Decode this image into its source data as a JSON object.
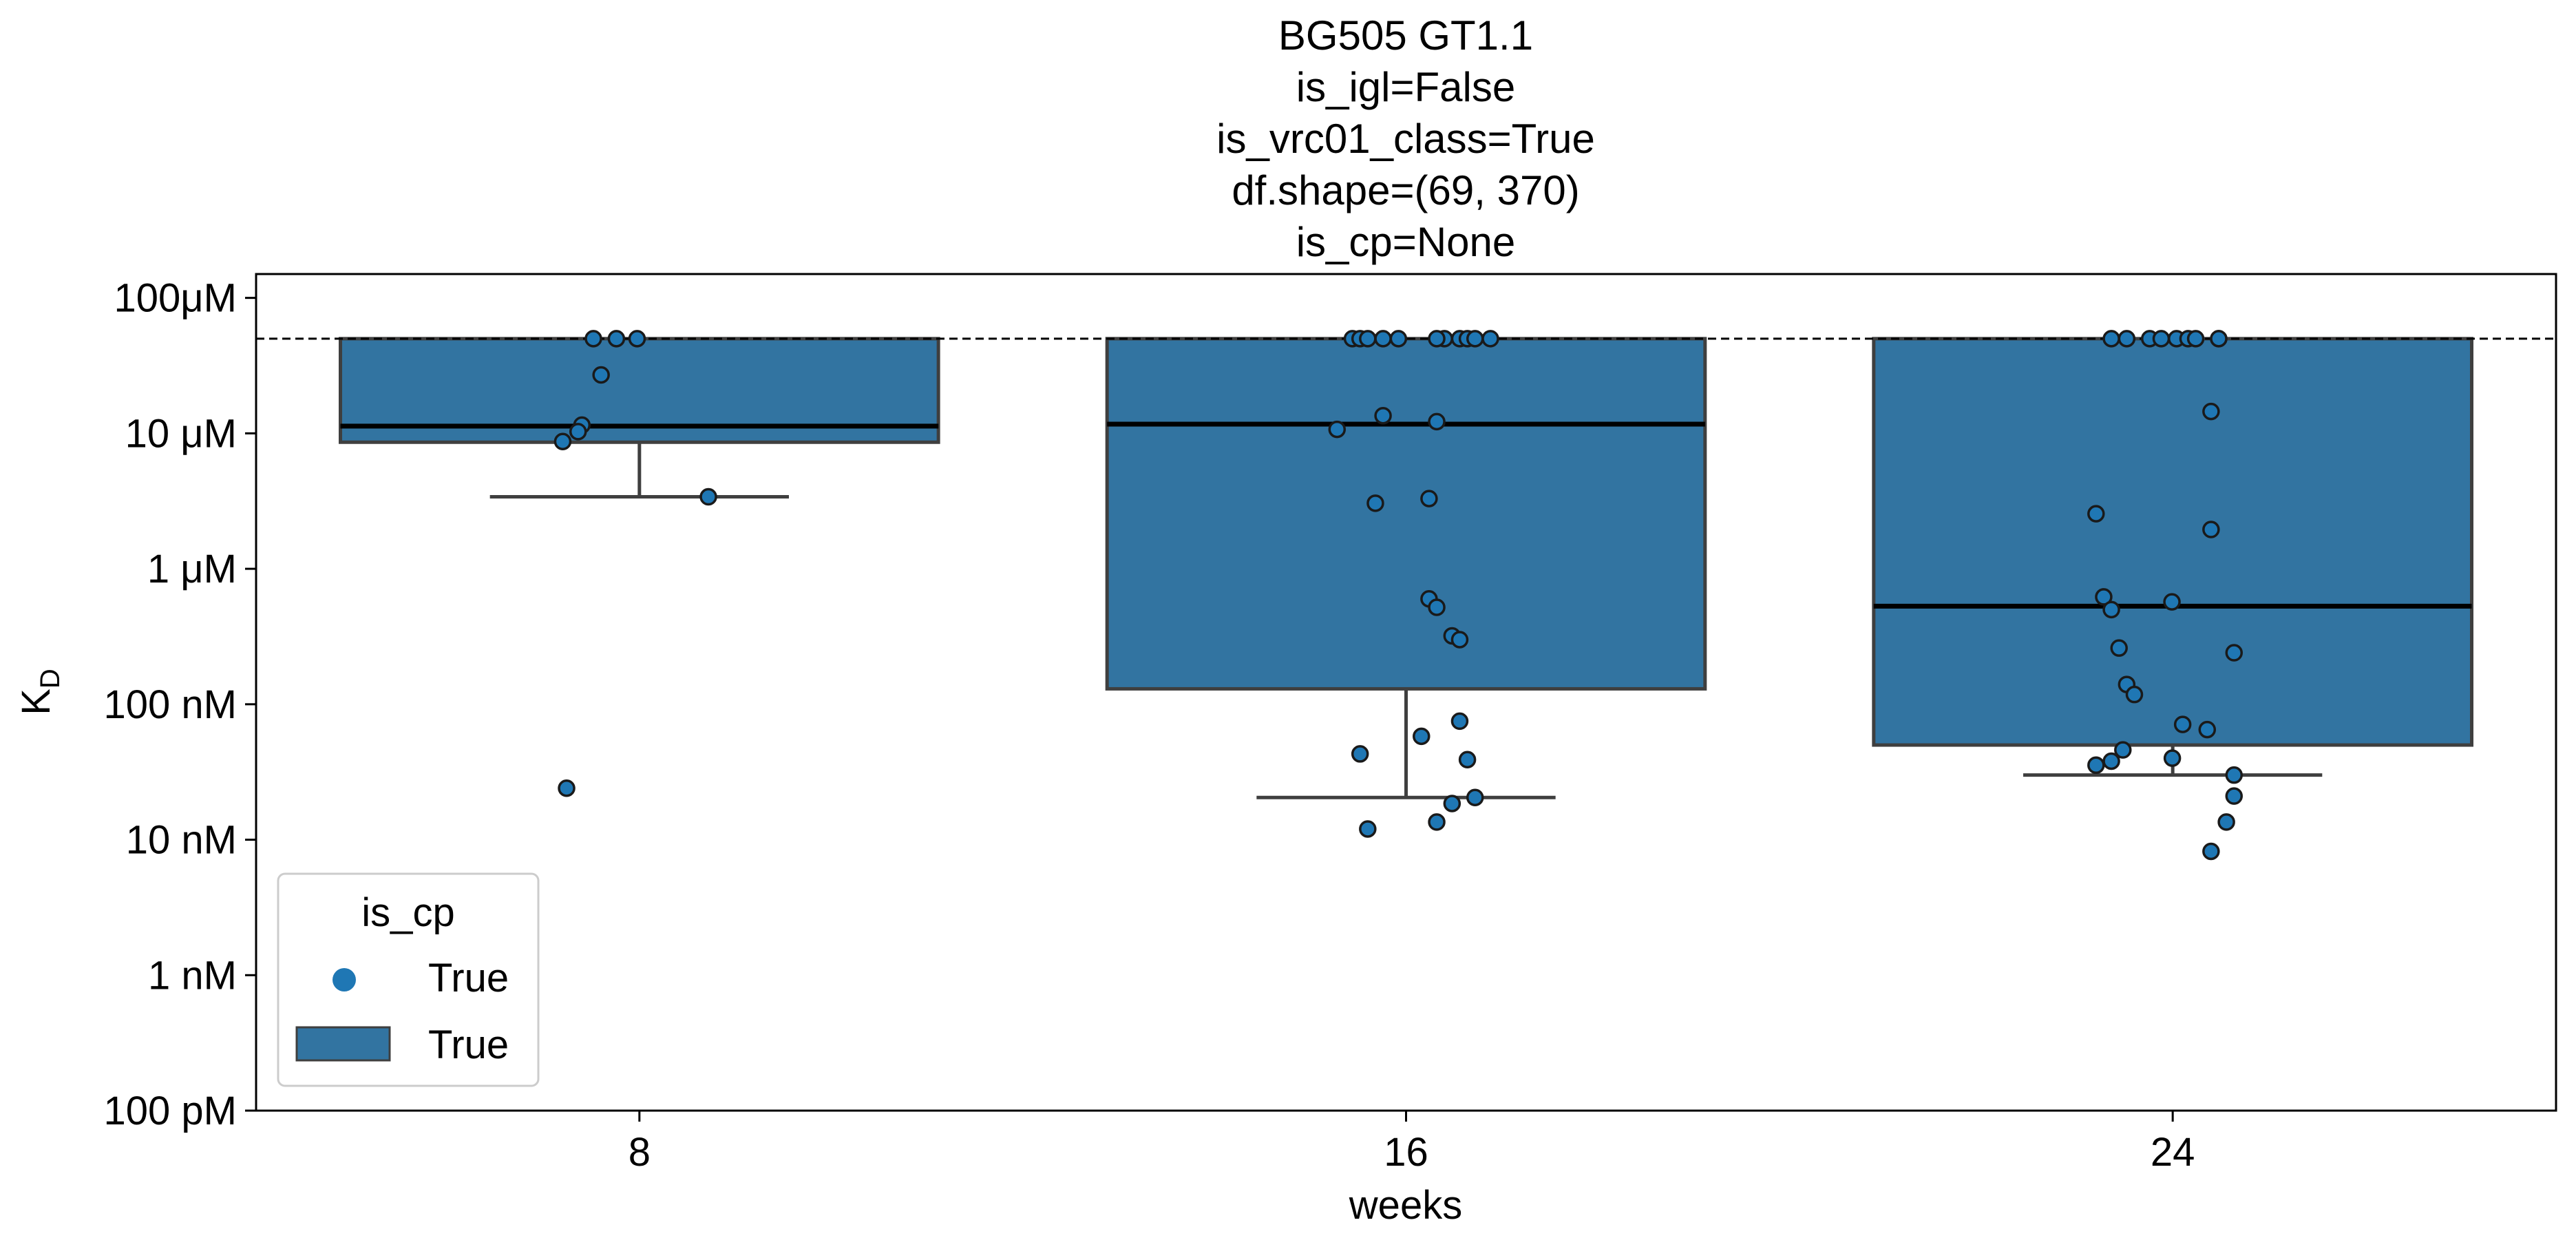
{
  "chart_data": {
    "type": "box",
    "title_lines": [
      "BG505 GT1.1",
      "is_igl=False",
      "is_vrc01_class=True",
      "df.shape=(69, 370)",
      "is_cp=None"
    ],
    "xlabel": "weeks",
    "ylabel": "K",
    "ylabel_subscript": "D",
    "y_scale": "log",
    "y_unit": "M",
    "ylim": [
      1e-10,
      0.00015
    ],
    "y_ticks": [
      {
        "value": 0.0001,
        "label": "100μM"
      },
      {
        "value": 1e-05,
        "label": "10 μM"
      },
      {
        "value": 1e-06,
        "label": "1 μM"
      },
      {
        "value": 1e-07,
        "label": "100 nM"
      },
      {
        "value": 1e-08,
        "label": "10 nM"
      },
      {
        "value": 1e-09,
        "label": "1 nM"
      },
      {
        "value": 1e-10,
        "label": "100 pM"
      }
    ],
    "categories": [
      "8",
      "16",
      "24"
    ],
    "reference_line": {
      "value": 5e-05,
      "style": "dashed"
    },
    "boxes": [
      {
        "category": "8",
        "whisker_low": 3.4e-06,
        "q1": 8.6e-06,
        "median": 1.13e-05,
        "q3": 5e-05,
        "whisker_high": 5e-05
      },
      {
        "category": "16",
        "whisker_low": 2.05e-08,
        "q1": 1.3e-07,
        "median": 1.17e-05,
        "q3": 5e-05,
        "whisker_high": 5e-05
      },
      {
        "category": "24",
        "whisker_low": 3e-08,
        "q1": 5e-08,
        "median": 5.3e-07,
        "q3": 5e-05,
        "whisker_high": 5e-05
      }
    ],
    "points": [
      {
        "category": "8",
        "values": [
          5e-05,
          5e-05,
          5e-05,
          2.7e-05,
          1.15e-05,
          1.03e-05,
          8.7e-06,
          3.4e-06,
          2.4e-08
        ]
      },
      {
        "category": "16",
        "values": [
          5e-05,
          5e-05,
          5e-05,
          5e-05,
          5e-05,
          5e-05,
          5e-05,
          5e-05,
          5e-05,
          5e-05,
          5e-05,
          1.35e-05,
          1.22e-05,
          1.07e-05,
          3.3e-06,
          3.05e-06,
          6e-07,
          5.2e-07,
          3.2e-07,
          3e-07,
          7.5e-08,
          5.8e-08,
          4.3e-08,
          3.9e-08,
          2.05e-08,
          1.85e-08,
          1.35e-08,
          1.2e-08
        ]
      },
      {
        "category": "24",
        "values": [
          5e-05,
          5e-05,
          5e-05,
          5e-05,
          5e-05,
          5e-05,
          5e-05,
          5e-05,
          5e-05,
          1.45e-05,
          2.55e-06,
          1.95e-06,
          6.2e-07,
          5.7e-07,
          5e-07,
          2.6e-07,
          2.4e-07,
          1.4e-07,
          1.18e-07,
          7.1e-08,
          6.5e-08,
          4.6e-08,
          4e-08,
          3.8e-08,
          3.55e-08,
          3e-08,
          2.1e-08,
          1.35e-08,
          8.2e-09
        ]
      }
    ],
    "point_offsets": [
      [
        -0.06,
        -0.03,
        -0.003,
        -0.05,
        -0.075,
        -0.08,
        -0.1,
        0.09,
        -0.095
      ],
      [
        -0.07,
        -0.06,
        -0.03,
        -0.01,
        0.05,
        0.07,
        0.08,
        0.09,
        0.11,
        0.04,
        -0.05,
        -0.03,
        0.04,
        -0.09,
        0.03,
        -0.04,
        0.03,
        0.04,
        0.06,
        0.07,
        0.07,
        0.02,
        -0.06,
        0.08,
        0.09,
        0.06,
        0.04,
        -0.05
      ],
      [
        -0.08,
        -0.06,
        -0.03,
        -0.015,
        0.005,
        0.02,
        0.03,
        0.06,
        0.06,
        0.05,
        -0.1,
        0.05,
        -0.09,
        -0.001,
        -0.08,
        -0.07,
        0.08,
        -0.06,
        -0.05,
        0.013,
        0.045,
        -0.065,
        -0.0005,
        -0.08,
        -0.1,
        0.08,
        0.08,
        0.07,
        0.05
      ]
    ],
    "colors": {
      "box_fill": "#3274a1",
      "box_edge": "#3f3f3f",
      "point_fill": "#1f77b4",
      "point_edge": "#1a1a1a",
      "median": "#000000"
    },
    "legend": {
      "title": "is_cp",
      "placement": "lower-left",
      "entries": [
        {
          "marker": "circle",
          "label": "True"
        },
        {
          "marker": "box",
          "label": "True"
        }
      ]
    }
  }
}
